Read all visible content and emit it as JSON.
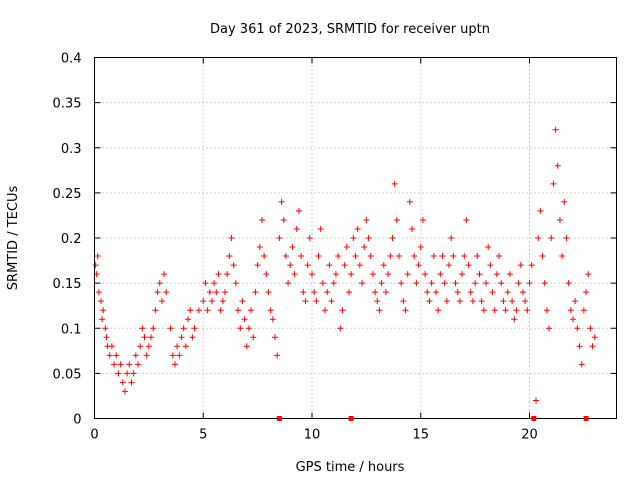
{
  "chart_data": {
    "type": "scatter",
    "title": "Day 361 of 2023, SRMTID for receiver uptn",
    "xlabel": "GPS time / hours",
    "ylabel": "SRMTID / TECUs",
    "xlim": [
      0,
      24
    ],
    "ylim": [
      0,
      0.4
    ],
    "x_ticks": [
      0,
      5,
      10,
      15,
      20
    ],
    "y_ticks": [
      0,
      0.05,
      0.1,
      0.15,
      0.2,
      0.25,
      0.3,
      0.35,
      0.4
    ],
    "x_tick_labels": [
      "0",
      "5",
      "10",
      "15",
      "20"
    ],
    "y_tick_labels": [
      "0",
      "0.05",
      "0.1",
      "0.15",
      "0.2",
      "0.25",
      "0.3",
      "0.35",
      "0.4"
    ],
    "grid": true,
    "marker": "+",
    "color": "#ff0000",
    "series": [
      {
        "name": "SRMTID",
        "points": [
          [
            0.05,
            0.17
          ],
          [
            0.1,
            0.16
          ],
          [
            0.15,
            0.18
          ],
          [
            0.2,
            0.14
          ],
          [
            0.3,
            0.13
          ],
          [
            0.35,
            0.11
          ],
          [
            0.4,
            0.12
          ],
          [
            0.5,
            0.1
          ],
          [
            0.55,
            0.09
          ],
          [
            0.6,
            0.08
          ],
          [
            0.7,
            0.07
          ],
          [
            0.8,
            0.08
          ],
          [
            0.9,
            0.06
          ],
          [
            1.0,
            0.07
          ],
          [
            1.1,
            0.05
          ],
          [
            1.2,
            0.06
          ],
          [
            1.3,
            0.04
          ],
          [
            1.4,
            0.03
          ],
          [
            1.5,
            0.05
          ],
          [
            1.6,
            0.06
          ],
          [
            1.7,
            0.04
          ],
          [
            1.8,
            0.05
          ],
          [
            1.9,
            0.07
          ],
          [
            2.0,
            0.06
          ],
          [
            2.1,
            0.08
          ],
          [
            2.2,
            0.1
          ],
          [
            2.3,
            0.09
          ],
          [
            2.4,
            0.07
          ],
          [
            2.5,
            0.08
          ],
          [
            2.6,
            0.09
          ],
          [
            2.7,
            0.1
          ],
          [
            2.8,
            0.12
          ],
          [
            2.9,
            0.14
          ],
          [
            3.0,
            0.15
          ],
          [
            3.1,
            0.13
          ],
          [
            3.2,
            0.16
          ],
          [
            3.3,
            0.14
          ],
          [
            3.5,
            0.1
          ],
          [
            3.6,
            0.07
          ],
          [
            3.7,
            0.06
          ],
          [
            3.8,
            0.08
          ],
          [
            3.9,
            0.07
          ],
          [
            4.0,
            0.09
          ],
          [
            4.1,
            0.1
          ],
          [
            4.2,
            0.08
          ],
          [
            4.3,
            0.11
          ],
          [
            4.4,
            0.12
          ],
          [
            4.5,
            0.09
          ],
          [
            4.6,
            0.1
          ],
          [
            4.8,
            0.12
          ],
          [
            5.0,
            0.13
          ],
          [
            5.1,
            0.15
          ],
          [
            5.2,
            0.12
          ],
          [
            5.3,
            0.14
          ],
          [
            5.4,
            0.13
          ],
          [
            5.5,
            0.15
          ],
          [
            5.6,
            0.14
          ],
          [
            5.7,
            0.16
          ],
          [
            5.8,
            0.12
          ],
          [
            5.9,
            0.13
          ],
          [
            6.0,
            0.14
          ],
          [
            6.1,
            0.16
          ],
          [
            6.2,
            0.18
          ],
          [
            6.3,
            0.2
          ],
          [
            6.4,
            0.17
          ],
          [
            6.5,
            0.15
          ],
          [
            6.6,
            0.12
          ],
          [
            6.7,
            0.1
          ],
          [
            6.8,
            0.13
          ],
          [
            6.9,
            0.11
          ],
          [
            7.0,
            0.08
          ],
          [
            7.1,
            0.1
          ],
          [
            7.2,
            0.12
          ],
          [
            7.3,
            0.09
          ],
          [
            7.4,
            0.14
          ],
          [
            7.5,
            0.17
          ],
          [
            7.6,
            0.19
          ],
          [
            7.7,
            0.22
          ],
          [
            7.8,
            0.18
          ],
          [
            7.9,
            0.16
          ],
          [
            8.0,
            0.14
          ],
          [
            8.1,
            0.12
          ],
          [
            8.2,
            0.11
          ],
          [
            8.3,
            0.09
          ],
          [
            8.4,
            0.07
          ],
          [
            8.5,
            0.2
          ],
          [
            8.6,
            0.24
          ],
          [
            8.7,
            0.22
          ],
          [
            8.8,
            0.18
          ],
          [
            8.9,
            0.15
          ],
          [
            9.0,
            0.17
          ],
          [
            9.1,
            0.19
          ],
          [
            9.2,
            0.16
          ],
          [
            9.3,
            0.21
          ],
          [
            9.4,
            0.23
          ],
          [
            9.5,
            0.18
          ],
          [
            9.6,
            0.14
          ],
          [
            9.7,
            0.13
          ],
          [
            9.8,
            0.17
          ],
          [
            9.9,
            0.2
          ],
          [
            10.0,
            0.16
          ],
          [
            10.1,
            0.14
          ],
          [
            10.2,
            0.13
          ],
          [
            10.3,
            0.18
          ],
          [
            10.4,
            0.21
          ],
          [
            10.5,
            0.15
          ],
          [
            10.6,
            0.12
          ],
          [
            10.7,
            0.14
          ],
          [
            10.8,
            0.17
          ],
          [
            10.9,
            0.13
          ],
          [
            11.0,
            0.15
          ],
          [
            11.1,
            0.16
          ],
          [
            11.2,
            0.18
          ],
          [
            11.3,
            0.1
          ],
          [
            11.4,
            0.12
          ],
          [
            11.5,
            0.17
          ],
          [
            11.6,
            0.19
          ],
          [
            11.7,
            0.14
          ],
          [
            11.8,
            0.16
          ],
          [
            11.9,
            0.2
          ],
          [
            12.0,
            0.18
          ],
          [
            12.1,
            0.21
          ],
          [
            12.2,
            0.17
          ],
          [
            12.3,
            0.15
          ],
          [
            12.4,
            0.19
          ],
          [
            12.5,
            0.22
          ],
          [
            12.6,
            0.2
          ],
          [
            12.7,
            0.18
          ],
          [
            12.8,
            0.16
          ],
          [
            12.9,
            0.14
          ],
          [
            13.0,
            0.13
          ],
          [
            13.1,
            0.12
          ],
          [
            13.2,
            0.15
          ],
          [
            13.3,
            0.17
          ],
          [
            13.4,
            0.14
          ],
          [
            13.5,
            0.16
          ],
          [
            13.6,
            0.18
          ],
          [
            13.7,
            0.2
          ],
          [
            13.8,
            0.26
          ],
          [
            13.9,
            0.22
          ],
          [
            14.0,
            0.18
          ],
          [
            14.1,
            0.15
          ],
          [
            14.2,
            0.13
          ],
          [
            14.3,
            0.12
          ],
          [
            14.4,
            0.16
          ],
          [
            14.5,
            0.24
          ],
          [
            14.6,
            0.21
          ],
          [
            14.7,
            0.18
          ],
          [
            14.8,
            0.15
          ],
          [
            14.9,
            0.17
          ],
          [
            15.0,
            0.19
          ],
          [
            15.1,
            0.22
          ],
          [
            15.2,
            0.16
          ],
          [
            15.3,
            0.14
          ],
          [
            15.4,
            0.13
          ],
          [
            15.5,
            0.15
          ],
          [
            15.6,
            0.18
          ],
          [
            15.7,
            0.14
          ],
          [
            15.8,
            0.12
          ],
          [
            15.9,
            0.16
          ],
          [
            16.0,
            0.18
          ],
          [
            16.1,
            0.15
          ],
          [
            16.2,
            0.13
          ],
          [
            16.3,
            0.17
          ],
          [
            16.4,
            0.2
          ],
          [
            16.5,
            0.18
          ],
          [
            16.6,
            0.15
          ],
          [
            16.7,
            0.14
          ],
          [
            16.8,
            0.13
          ],
          [
            16.9,
            0.16
          ],
          [
            17.0,
            0.18
          ],
          [
            17.1,
            0.22
          ],
          [
            17.2,
            0.17
          ],
          [
            17.3,
            0.14
          ],
          [
            17.4,
            0.13
          ],
          [
            17.5,
            0.15
          ],
          [
            17.6,
            0.18
          ],
          [
            17.7,
            0.16
          ],
          [
            17.8,
            0.13
          ],
          [
            17.9,
            0.12
          ],
          [
            18.0,
            0.15
          ],
          [
            18.1,
            0.19
          ],
          [
            18.2,
            0.17
          ],
          [
            18.3,
            0.14
          ],
          [
            18.4,
            0.12
          ],
          [
            18.5,
            0.16
          ],
          [
            18.6,
            0.18
          ],
          [
            18.7,
            0.15
          ],
          [
            18.8,
            0.13
          ],
          [
            18.9,
            0.12
          ],
          [
            19.0,
            0.14
          ],
          [
            19.1,
            0.16
          ],
          [
            19.2,
            0.13
          ],
          [
            19.3,
            0.11
          ],
          [
            19.4,
            0.12
          ],
          [
            19.5,
            0.15
          ],
          [
            19.6,
            0.17
          ],
          [
            19.7,
            0.14
          ],
          [
            19.8,
            0.13
          ],
          [
            19.9,
            0.12
          ],
          [
            20.0,
            0.15
          ],
          [
            20.1,
            0.17
          ],
          [
            20.3,
            0.02
          ],
          [
            20.4,
            0.2
          ],
          [
            20.5,
            0.23
          ],
          [
            20.6,
            0.18
          ],
          [
            20.7,
            0.15
          ],
          [
            20.8,
            0.12
          ],
          [
            20.9,
            0.1
          ],
          [
            21.0,
            0.2
          ],
          [
            21.1,
            0.26
          ],
          [
            21.2,
            0.32
          ],
          [
            21.3,
            0.28
          ],
          [
            21.4,
            0.22
          ],
          [
            21.5,
            0.18
          ],
          [
            21.6,
            0.24
          ],
          [
            21.7,
            0.2
          ],
          [
            21.8,
            0.15
          ],
          [
            21.9,
            0.12
          ],
          [
            22.0,
            0.11
          ],
          [
            22.1,
            0.13
          ],
          [
            22.2,
            0.1
          ],
          [
            22.3,
            0.08
          ],
          [
            22.4,
            0.06
          ],
          [
            22.5,
            0.12
          ],
          [
            22.6,
            0.14
          ],
          [
            22.7,
            0.16
          ],
          [
            22.8,
            0.1
          ],
          [
            22.9,
            0.08
          ],
          [
            23.0,
            0.09
          ]
        ]
      }
    ],
    "zero_markers_x": [
      8.5,
      11.8,
      20.2,
      22.6
    ]
  }
}
